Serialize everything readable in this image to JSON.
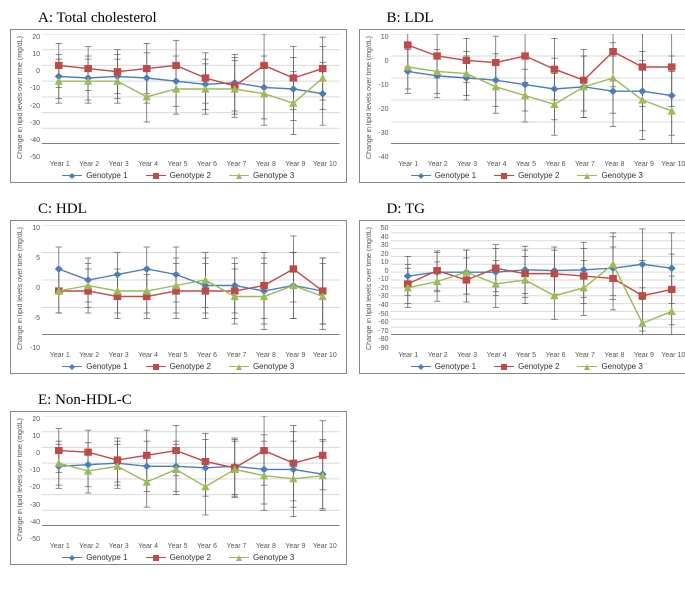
{
  "chart_common": {
    "ylabel": "Change in lipid levels over time (mg/dL)",
    "categories": [
      "Year 1",
      "Year 2",
      "Year 3",
      "Year 4",
      "Year 5",
      "Year 6",
      "Year 7",
      "Year 8",
      "Year 9",
      "Year 10"
    ],
    "series_names": [
      "Genotype  1",
      "Genotype 2",
      "Genotype  3"
    ],
    "colors": {
      "genotype1": "#4a7ebb",
      "genotype2": "#be4b48",
      "genotype3": "#9bbb59",
      "grid": "#d9d9d9",
      "axis": "#808080",
      "error": "#5a5a5a",
      "background": "#ffffff",
      "text": "#595959"
    },
    "line_width": 1.4,
    "marker": {
      "g1": "diamond",
      "g2": "square",
      "g3": "triangle",
      "size": 4
    },
    "error_cap": 3,
    "label_fontsize": 7,
    "tick_fontsize": 7
  },
  "panels": {
    "A": {
      "title": "A: Total cholesterol",
      "ymin": -50,
      "ymax": 20,
      "ystep": 10,
      "inverted": true,
      "g1": [
        -7,
        -8,
        -7,
        -8,
        -10,
        -12,
        -11,
        -14,
        -15,
        -18
      ],
      "g2": [
        0,
        -2,
        -4,
        -2,
        0,
        -8,
        -13,
        0,
        -8,
        -2
      ],
      "g3": [
        -10,
        -10,
        -10,
        -20,
        -15,
        -15,
        -15,
        -18,
        -24,
        -8
      ],
      "err": [
        14,
        14,
        14,
        16,
        16,
        16,
        18,
        20,
        20,
        20
      ]
    },
    "B": {
      "title": "B: LDL",
      "ymin": -40,
      "ymax": 10,
      "ystep": 10,
      "inverted": true,
      "g1": [
        -7,
        -9,
        -10,
        -11,
        -13,
        -15,
        -14,
        -16,
        -16,
        -18
      ],
      "g2": [
        5,
        0,
        -2,
        -3,
        0,
        -6,
        -11,
        2,
        -5,
        -5
      ],
      "g3": [
        -5,
        -7,
        -8,
        -14,
        -18,
        -22,
        -14,
        -10,
        -20,
        -25
      ],
      "err": [
        10,
        10,
        10,
        12,
        12,
        14,
        14,
        16,
        18,
        18
      ]
    },
    "C": {
      "title": "C: HDL",
      "ymin": -10,
      "ymax": 10,
      "ystep": 5,
      "inverted": true,
      "g1": [
        2,
        0,
        1,
        2,
        1,
        -1,
        -1,
        -2,
        -1,
        -2
      ],
      "g2": [
        -2,
        -2,
        -3,
        -3,
        -2,
        -2,
        -2,
        -1,
        2,
        -2
      ],
      "g3": [
        -2,
        -1,
        -2,
        -2,
        -1,
        0,
        -3,
        -3,
        -1,
        -3
      ],
      "err": [
        4,
        4,
        4,
        4,
        5,
        5,
        5,
        6,
        6,
        6
      ]
    },
    "D": {
      "title": "D: TG",
      "ymin": -90,
      "ymax": 50,
      "ystep": 10,
      "inverted": true,
      "g1": [
        -15,
        -10,
        -10,
        -10,
        -7,
        -8,
        -7,
        -5,
        0,
        -5
      ],
      "g2": [
        -25,
        -8,
        -20,
        -5,
        -12,
        -12,
        -15,
        -18,
        -40,
        -32
      ],
      "g3": [
        -30,
        -22,
        -10,
        -25,
        -20,
        -40,
        -30,
        0,
        -75,
        -60
      ],
      "err": [
        25,
        25,
        28,
        30,
        30,
        30,
        35,
        40,
        45,
        45
      ]
    },
    "E": {
      "title": "E: Non-HDL-C",
      "ymin": -50,
      "ymax": 20,
      "ystep": 10,
      "inverted": true,
      "g1": [
        -12,
        -11,
        -10,
        -12,
        -12,
        -13,
        -12,
        -14,
        -14,
        -17
      ],
      "g2": [
        -2,
        -3,
        -8,
        -5,
        -2,
        -9,
        -13,
        -2,
        -10,
        -5
      ],
      "g3": [
        -10,
        -15,
        -12,
        -22,
        -14,
        -25,
        -14,
        -18,
        -20,
        -18
      ],
      "err": [
        14,
        14,
        14,
        16,
        16,
        18,
        18,
        22,
        24,
        22
      ]
    }
  }
}
